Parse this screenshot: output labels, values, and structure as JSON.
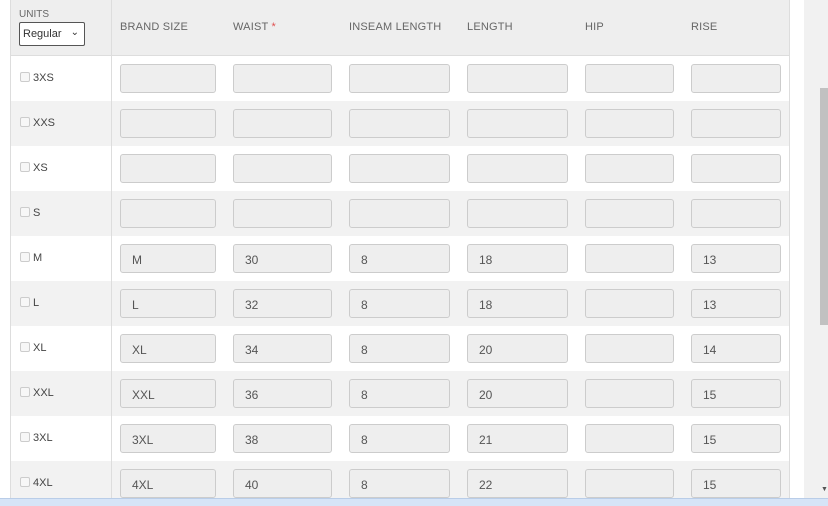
{
  "units": {
    "label": "UNITS",
    "selected": "Regular"
  },
  "columns": [
    "BRAND SIZE",
    "WAIST",
    "INSEAM LENGTH",
    "LENGTH",
    "HIP",
    "RISE"
  ],
  "required_marker": "*",
  "rows": [
    {
      "size": "3XS",
      "values": [
        "",
        "",
        "",
        "",
        "",
        ""
      ]
    },
    {
      "size": "XXS",
      "values": [
        "",
        "",
        "",
        "",
        "",
        ""
      ]
    },
    {
      "size": "XS",
      "values": [
        "",
        "",
        "",
        "",
        "",
        ""
      ]
    },
    {
      "size": "S",
      "values": [
        "",
        "",
        "",
        "",
        "",
        ""
      ]
    },
    {
      "size": "M",
      "values": [
        "M",
        "30",
        "8",
        "18",
        "",
        "13"
      ]
    },
    {
      "size": "L",
      "values": [
        "L",
        "32",
        "8",
        "18",
        "",
        "13"
      ]
    },
    {
      "size": "XL",
      "values": [
        "XL",
        "34",
        "8",
        "20",
        "",
        "14"
      ]
    },
    {
      "size": "XXL",
      "values": [
        "XXL",
        "36",
        "8",
        "20",
        "",
        "15"
      ]
    },
    {
      "size": "3XL",
      "values": [
        "3XL",
        "38",
        "8",
        "21",
        "",
        "15"
      ]
    },
    {
      "size": "4XL",
      "values": [
        "4XL",
        "40",
        "8",
        "22",
        "",
        "15"
      ]
    }
  ]
}
